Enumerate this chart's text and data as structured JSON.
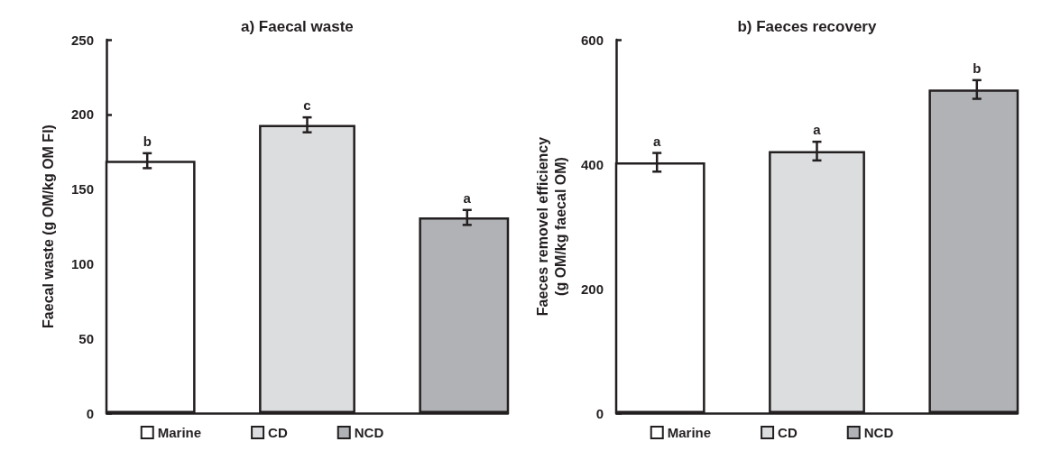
{
  "chart_data": [
    {
      "type": "bar",
      "title": "a) Faecal waste",
      "ylabel": "Faecal waste (g OM/kg OM FI)",
      "categories": [
        null
      ],
      "series": [
        {
          "name": "Marine",
          "color": "#ffffff",
          "values": [
            169
          ],
          "errors": [
            5
          ]
        },
        {
          "name": "CD",
          "color": "#dcdddf",
          "values": [
            193
          ],
          "errors": [
            5
          ]
        },
        {
          "name": "NCD",
          "color": "#b1b2b6",
          "values": [
            131
          ],
          "errors": [
            5
          ]
        }
      ],
      "annotations": [
        "b",
        "c",
        "a"
      ],
      "ylim": [
        0,
        250
      ],
      "yticks": [
        0,
        50,
        100,
        150,
        200,
        250
      ],
      "grid": false,
      "legend": "bottom"
    },
    {
      "type": "bar",
      "title": "b) Faeces recovery",
      "ylabel": "Faeces removel efficiency\n(g OM/kg faecal OM)",
      "categories": [
        null
      ],
      "series": [
        {
          "name": "Marine",
          "color": "#ffffff",
          "values": [
            403
          ],
          "errors": [
            15
          ]
        },
        {
          "name": "CD",
          "color": "#dcdddf",
          "values": [
            421
          ],
          "errors": [
            15
          ]
        },
        {
          "name": "NCD",
          "color": "#b1b2b6",
          "values": [
            520
          ],
          "errors": [
            15
          ]
        }
      ],
      "annotations": [
        "a",
        "a",
        "b"
      ],
      "ylim": [
        0,
        600
      ],
      "yticks": [
        0,
        200,
        400,
        600
      ],
      "grid": false,
      "legend": "bottom"
    }
  ]
}
